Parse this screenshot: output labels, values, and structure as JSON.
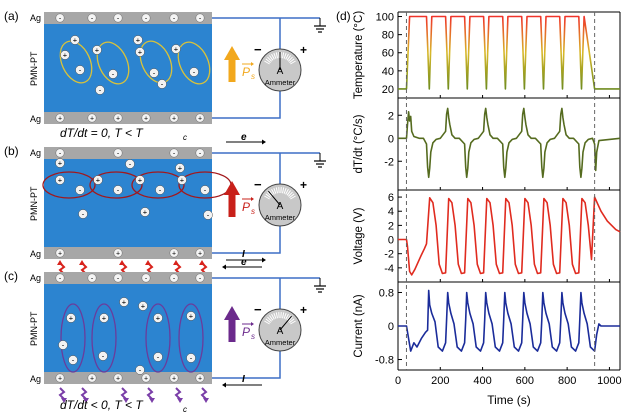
{
  "panels": [
    {
      "letter": "(a)",
      "condition": "dT/dt = 0, T < T",
      "sub": "c",
      "ps_color": "#f2a81d",
      "ellipse_color": "#d9c23a",
      "ps_dir": "up",
      "has_e": false,
      "has_i": false,
      "has_heat": false,
      "has_cool": false
    },
    {
      "letter": "(b)",
      "condition": "dT/dt > 0, T < T",
      "sub": "c",
      "ps_color": "#c8201a",
      "ellipse_color": "#a2181c",
      "ps_dir": "up",
      "has_e": true,
      "has_i": true,
      "has_heat": true,
      "has_cool": false
    },
    {
      "letter": "(c)",
      "condition": "dT/dt < 0, T < T",
      "sub": "c",
      "ps_color": "#6b2a8c",
      "ellipse_color": "#6a3c9c",
      "ps_dir": "up",
      "has_e": true,
      "has_i": true,
      "has_heat": false,
      "has_cool": true
    }
  ],
  "labels": {
    "ag": "Ag",
    "material": "PMN-PT",
    "ammeter_letter": "A",
    "ammeter_label": "Ammeter",
    "minus": "−",
    "plus": "+",
    "e": "e",
    "i": "I",
    "ps": "P",
    "ps_sub": "s",
    "panel_d": "(d)"
  },
  "chart_data": {
    "type": "line",
    "xlabel": "Time (s)",
    "xlim": [
      0,
      1050
    ],
    "xticks": [
      0,
      200,
      400,
      600,
      800,
      1000
    ],
    "vlines": [
      40,
      930
    ],
    "grid": false,
    "subplots": [
      {
        "ylabel": "Temperature (°C)",
        "ylim": [
          10,
          105
        ],
        "yticks": [
          20,
          40,
          60,
          80,
          100
        ],
        "color": "gradient-temperature",
        "x": [
          0,
          40,
          55,
          70,
          135,
          148,
          160,
          225,
          238,
          250,
          315,
          328,
          340,
          405,
          418,
          430,
          495,
          508,
          520,
          585,
          598,
          610,
          675,
          688,
          700,
          765,
          778,
          790,
          855,
          868,
          880,
          930,
          1050
        ],
        "y": [
          20,
          20,
          100,
          100,
          100,
          20,
          100,
          100,
          20,
          100,
          100,
          20,
          100,
          100,
          20,
          100,
          100,
          20,
          100,
          100,
          20,
          100,
          100,
          20,
          100,
          100,
          20,
          100,
          100,
          20,
          100,
          20,
          20
        ]
      },
      {
        "ylabel": "dT/dt (°C/s)",
        "ylim": [
          -4.5,
          3.5
        ],
        "yticks": [
          -2,
          0,
          2
        ],
        "color": "#556b1f",
        "x": [
          0,
          40,
          45,
          50,
          55,
          60,
          65,
          75,
          100,
          120,
          135,
          140,
          145,
          150,
          155,
          165,
          180,
          200,
          225,
          230,
          235,
          240,
          245,
          255,
          270,
          290,
          315,
          320,
          325,
          330,
          335,
          345,
          360,
          380,
          405,
          410,
          415,
          420,
          425,
          435,
          450,
          470,
          495,
          500,
          505,
          510,
          515,
          525,
          540,
          560,
          585,
          590,
          595,
          600,
          605,
          615,
          630,
          650,
          675,
          680,
          685,
          690,
          695,
          705,
          720,
          740,
          765,
          770,
          775,
          780,
          785,
          795,
          810,
          830,
          855,
          860,
          865,
          870,
          875,
          885,
          900,
          920,
          930,
          935,
          940,
          950,
          1050
        ],
        "y": [
          0,
          0,
          1.2,
          2.3,
          1.5,
          1.9,
          0.6,
          0.15,
          0,
          0,
          -0.5,
          -2.5,
          -3.4,
          -2.6,
          -1.2,
          -0.4,
          -0.1,
          0,
          0.6,
          2.1,
          2.6,
          1.8,
          1.2,
          0.3,
          0,
          0,
          -0.5,
          -2.5,
          -3.4,
          -2.6,
          -1.2,
          -0.4,
          -0.1,
          0,
          0.6,
          2.1,
          2.6,
          1.8,
          1.2,
          0.3,
          0,
          0,
          -0.5,
          -2.5,
          -3.4,
          -2.6,
          -1.2,
          -0.4,
          -0.1,
          0,
          0.6,
          2.1,
          2.6,
          1.8,
          1.2,
          0.3,
          0,
          0,
          -0.5,
          -2.5,
          -3.4,
          -2.6,
          -1.2,
          -0.4,
          -0.1,
          0,
          0.6,
          2.1,
          2.6,
          1.8,
          1.2,
          0.3,
          0,
          0,
          -0.5,
          -2.5,
          -3.4,
          -2.6,
          -1.2,
          -0.4,
          -0.1,
          0,
          -0.5,
          -2.8,
          -1.2,
          -0.2,
          0
        ]
      },
      {
        "ylabel": "Voltage (V)",
        "ylim": [
          -6,
          7
        ],
        "yticks": [
          -4,
          -2,
          0,
          2,
          4,
          6
        ],
        "color": "#e02b1f",
        "x": [
          0,
          40,
          45,
          55,
          65,
          80,
          95,
          110,
          125,
          135,
          150,
          165,
          180,
          195,
          210,
          225,
          240,
          255,
          270,
          285,
          300,
          315,
          330,
          345,
          360,
          375,
          390,
          405,
          420,
          435,
          450,
          465,
          480,
          495,
          510,
          525,
          540,
          555,
          570,
          585,
          600,
          615,
          630,
          645,
          660,
          675,
          690,
          705,
          720,
          735,
          750,
          765,
          780,
          795,
          810,
          825,
          840,
          855,
          870,
          885,
          900,
          915,
          930,
          945,
          960,
          990,
          1030,
          1050
        ],
        "y": [
          0,
          0,
          -1,
          -4.5,
          -5,
          -4.2,
          -3.2,
          -2.2,
          -1.3,
          -0.6,
          5.9,
          5.2,
          2,
          -3.5,
          -4.8,
          -4.7,
          5.8,
          5.2,
          2,
          -3.5,
          -4.8,
          -4.7,
          5.8,
          5.2,
          2,
          -3.5,
          -4.8,
          -4.7,
          5.8,
          5.2,
          2,
          -3.5,
          -4.8,
          -4.7,
          5.8,
          5.2,
          2,
          -3.5,
          -4.8,
          -4.7,
          5.8,
          5.2,
          2,
          -3.5,
          -4.8,
          -4.7,
          5.8,
          5.2,
          2,
          -3.5,
          -4.8,
          -4.7,
          5.8,
          5.2,
          2,
          -3.5,
          -4.8,
          -4.7,
          5.8,
          5.2,
          2,
          -2.8,
          6.0,
          5.0,
          4,
          2.6,
          1.4,
          1.1
        ]
      },
      {
        "ylabel": "Current (nA)",
        "ylim": [
          -1.05,
          1.05
        ],
        "yticks": [
          -0.8,
          0,
          0.8
        ],
        "color": "#1b2c9a",
        "x": [
          0,
          40,
          50,
          60,
          75,
          90,
          110,
          130,
          140,
          145,
          150,
          160,
          175,
          190,
          210,
          225,
          230,
          235,
          240,
          250,
          265,
          280,
          300,
          315,
          320,
          325,
          330,
          340,
          355,
          370,
          390,
          405,
          410,
          415,
          420,
          430,
          445,
          460,
          480,
          495,
          500,
          505,
          510,
          520,
          535,
          550,
          570,
          585,
          590,
          595,
          600,
          610,
          625,
          640,
          660,
          675,
          680,
          685,
          690,
          700,
          715,
          730,
          750,
          765,
          770,
          775,
          780,
          790,
          805,
          820,
          840,
          855,
          860,
          865,
          870,
          880,
          895,
          910,
          930,
          940,
          950,
          960,
          1050
        ],
        "y": [
          0,
          0,
          -0.3,
          -0.6,
          -0.4,
          -0.5,
          -0.3,
          -0.15,
          -0.1,
          0.85,
          0.5,
          0.3,
          0.1,
          -0.5,
          -0.6,
          -0.4,
          0.15,
          0.8,
          0.55,
          0.3,
          0.05,
          -0.5,
          -0.6,
          -0.4,
          0.15,
          0.8,
          0.55,
          0.3,
          0.05,
          -0.5,
          -0.6,
          -0.4,
          0.15,
          0.8,
          0.55,
          0.3,
          0.05,
          -0.5,
          -0.6,
          -0.4,
          0.15,
          0.8,
          0.55,
          0.3,
          0.05,
          -0.5,
          -0.6,
          -0.4,
          0.15,
          0.8,
          0.55,
          0.3,
          0.05,
          -0.5,
          -0.6,
          -0.4,
          0.15,
          0.8,
          0.55,
          0.3,
          0.05,
          -0.5,
          -0.6,
          -0.4,
          0.15,
          0.8,
          0.55,
          0.3,
          0.05,
          -0.5,
          -0.6,
          -0.4,
          0.15,
          0.8,
          0.55,
          0.3,
          0.05,
          -0.5,
          -0.6,
          -0.2,
          0.05,
          0,
          0
        ]
      }
    ]
  }
}
